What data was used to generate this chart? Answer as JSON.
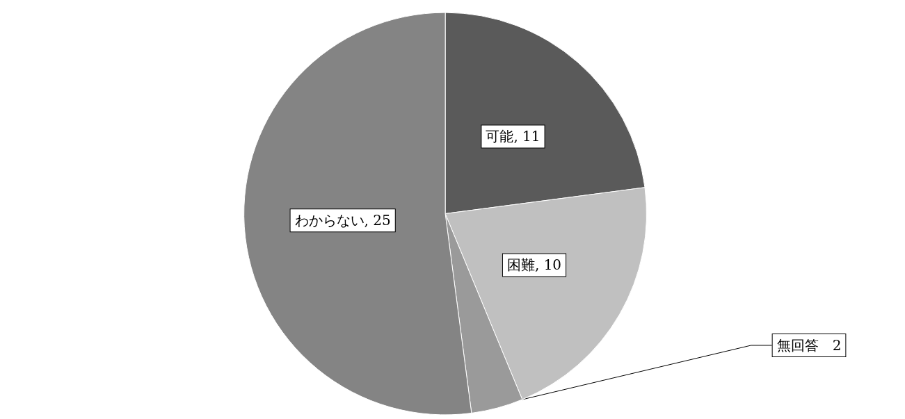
{
  "chart_data": {
    "type": "pie",
    "categories": [
      "可能",
      "困難",
      "無回答",
      "わからない"
    ],
    "values": [
      11,
      10,
      2,
      25
    ],
    "colors": [
      "#5a5a5a",
      "#c0c0c0",
      "#9a9a9a",
      "#848484"
    ],
    "value_labels": [
      ", 11",
      ", 10",
      "　2",
      ", 25"
    ],
    "legend": false
  }
}
